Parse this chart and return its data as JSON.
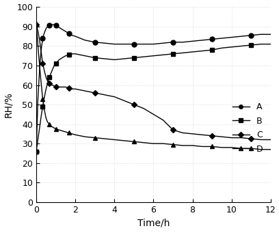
{
  "xlabel": "Time/h",
  "ylabel": "RH/%",
  "xlim": [
    0,
    12
  ],
  "ylim": [
    0,
    100
  ],
  "xticks": [
    0,
    2,
    4,
    6,
    8,
    10,
    12
  ],
  "yticks": [
    0,
    10,
    20,
    30,
    40,
    50,
    60,
    70,
    80,
    90,
    100
  ],
  "series": {
    "A": {
      "marker": "o",
      "markersize": 5,
      "x": [
        0.0,
        0.08,
        0.17,
        0.25,
        0.33,
        0.42,
        0.5,
        0.58,
        0.67,
        0.75,
        0.83,
        0.92,
        1.0,
        1.17,
        1.33,
        1.5,
        1.67,
        1.83,
        2.0,
        2.5,
        3.0,
        3.5,
        4.0,
        4.5,
        5.0,
        5.5,
        6.0,
        6.5,
        7.0,
        7.5,
        8.0,
        8.5,
        9.0,
        9.5,
        10.0,
        10.5,
        11.0,
        11.5,
        12.0
      ],
      "y": [
        26,
        52,
        68,
        78,
        84,
        87,
        89,
        90,
        90.5,
        91,
        91,
        91,
        90.5,
        89.5,
        88.5,
        87.5,
        86.5,
        85.5,
        85,
        83,
        82,
        81.5,
        81,
        81,
        81,
        81,
        81,
        81.5,
        82,
        82,
        82.5,
        83,
        83.5,
        84,
        84.5,
        85,
        85.5,
        86,
        86
      ]
    },
    "B": {
      "marker": "s",
      "markersize": 5,
      "x": [
        0.0,
        0.08,
        0.17,
        0.25,
        0.33,
        0.42,
        0.5,
        0.58,
        0.67,
        0.75,
        0.83,
        0.92,
        1.0,
        1.17,
        1.33,
        1.5,
        1.67,
        1.83,
        2.0,
        2.5,
        3.0,
        3.5,
        4.0,
        4.5,
        5.0,
        5.5,
        6.0,
        6.5,
        7.0,
        7.5,
        8.0,
        8.5,
        9.0,
        9.5,
        10.0,
        10.5,
        11.0,
        11.5,
        12.0
      ],
      "y": [
        26,
        32,
        38,
        44,
        49,
        54,
        58,
        61,
        64,
        66,
        68,
        70,
        71,
        73,
        74,
        75,
        75.5,
        76,
        76,
        75,
        74,
        73.5,
        73,
        73.5,
        74,
        74.5,
        75,
        75.5,
        76,
        76.5,
        77,
        77.5,
        78,
        79,
        79.5,
        80,
        80.5,
        81,
        81
      ]
    },
    "C": {
      "marker": "D",
      "markersize": 4,
      "x": [
        0.0,
        0.08,
        0.17,
        0.25,
        0.33,
        0.42,
        0.5,
        0.58,
        0.67,
        0.75,
        0.83,
        0.92,
        1.0,
        1.17,
        1.33,
        1.5,
        1.67,
        1.83,
        2.0,
        2.5,
        3.0,
        3.5,
        4.0,
        4.5,
        5.0,
        5.5,
        6.0,
        6.5,
        7.0,
        7.5,
        8.0,
        8.5,
        9.0,
        9.5,
        10.0,
        10.5,
        11.0,
        11.5,
        12.0
      ],
      "y": [
        91,
        88,
        83,
        77,
        71,
        67,
        64,
        62,
        61,
        60,
        60,
        59.5,
        59,
        59,
        59,
        59,
        58.5,
        58,
        58,
        57,
        56,
        55,
        54,
        52,
        50,
        48,
        45,
        42,
        37,
        35.5,
        35,
        34.5,
        34,
        33.5,
        33,
        33,
        32.5,
        32,
        32
      ]
    },
    "D": {
      "marker": "^",
      "markersize": 5,
      "x": [
        0.0,
        0.08,
        0.17,
        0.25,
        0.33,
        0.42,
        0.5,
        0.58,
        0.67,
        0.75,
        0.83,
        0.92,
        1.0,
        1.17,
        1.33,
        1.5,
        1.67,
        1.83,
        2.0,
        2.5,
        3.0,
        3.5,
        4.0,
        4.5,
        5.0,
        5.5,
        6.0,
        6.5,
        7.0,
        7.5,
        8.0,
        8.5,
        9.0,
        9.5,
        10.0,
        10.5,
        11.0,
        11.5,
        12.0
      ],
      "y": [
        91,
        81,
        70,
        61,
        53,
        47,
        43,
        41,
        40,
        39,
        38.5,
        38,
        37.5,
        37,
        36.5,
        36,
        35.5,
        35,
        34.5,
        33.5,
        33,
        32.5,
        32,
        31.5,
        31,
        30.5,
        30,
        30,
        29.5,
        29,
        29,
        28.5,
        28.5,
        28,
        28,
        27.5,
        27.5,
        27,
        27
      ]
    }
  },
  "legend_labels": [
    "A",
    "B",
    "C",
    "D"
  ],
  "legend_markers": [
    "o",
    "s",
    "D",
    "^"
  ],
  "background_color": "#ffffff",
  "linewidth": 1.0,
  "color": "#000000",
  "marker_every": {
    "A": 4,
    "B": 4,
    "C": 4,
    "D": 4
  },
  "grid_alpha": 0.4,
  "grid_linestyle": ":"
}
